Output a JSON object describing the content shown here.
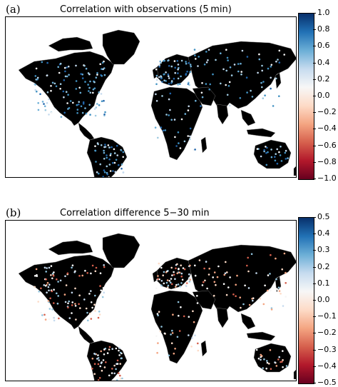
{
  "panels": [
    {
      "letter": "(a)",
      "title": "Correlation with observations (5 min)",
      "colorbar": {
        "ticks": [
          "1.0",
          "0.8",
          "0.6",
          "0.4",
          "0.2",
          "0.0",
          "−0.2",
          "−0.4",
          "−0.6",
          "−0.8",
          "−1.0"
        ],
        "colors_top_to_bottom": [
          "#08306b",
          "#2171b5",
          "#6baed6",
          "#c6dbef",
          "#f7f7f7",
          "#fddbc7",
          "#f4a582",
          "#d6604d",
          "#b2182b",
          "#67001f"
        ]
      }
    },
    {
      "letter": "(b)",
      "title": "Correlation difference 5−30 min",
      "colorbar": {
        "ticks": [
          "0.5",
          "0.4",
          "0.3",
          "0.2",
          "0.1",
          "0.0",
          "−0.1",
          "−0.2",
          "−0.3",
          "−0.4",
          "−0.5"
        ],
        "colors_top_to_bottom": [
          "#08306b",
          "#2171b5",
          "#6baed6",
          "#c6dbef",
          "#f7f7f7",
          "#fddbc7",
          "#f4a582",
          "#d6604d",
          "#b2182b",
          "#67001f"
        ]
      }
    }
  ],
  "map_style": {
    "land": "#000000",
    "ocean": "#ffffff",
    "borders": "#8a8a8a"
  }
}
